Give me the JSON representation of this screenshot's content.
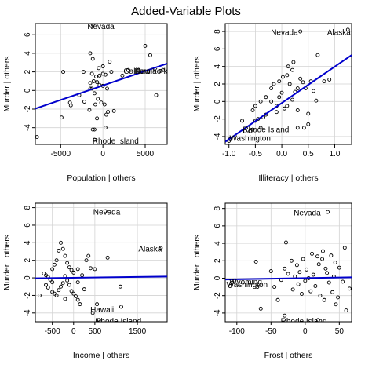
{
  "title": "Added-Variable Plots",
  "chart_data": [
    {
      "type": "scatter",
      "xlabel": "Population | others",
      "ylabel": "Murder | others",
      "xlim": [
        -8000,
        7600
      ],
      "ylim": [
        -5.8,
        7.2
      ],
      "xticks": [
        -5000,
        0,
        5000
      ],
      "xtick_labels": [
        "-5000",
        "0",
        "5000"
      ],
      "yticks": [
        -4,
        -2,
        0,
        2,
        4,
        6
      ],
      "yticklabels": [
        "-4",
        "-2",
        "0",
        "2",
        "4",
        "6"
      ],
      "line": {
        "x": [
          -8000,
          7600
        ],
        "y": [
          -1.95,
          2.9
        ]
      },
      "labels": [
        {
          "text": "Nevada",
          "x": -250,
          "y": 6.9
        },
        {
          "text": "California",
          "x": 4400,
          "y": 2.1
        },
        {
          "text": "New York",
          "x": 5700,
          "y": 2.1
        },
        {
          "text": "Rhode Island",
          "x": 1500,
          "y": -5.4
        }
      ],
      "points": [
        [
          -1200,
          7.1
        ],
        [
          -2300,
          2.0
        ],
        [
          -1300,
          1.8
        ],
        [
          -800,
          1.5
        ],
        [
          -400,
          1.6
        ],
        [
          0,
          1.8
        ],
        [
          300,
          1.7
        ],
        [
          -1500,
          0.8
        ],
        [
          -1100,
          1.0
        ],
        [
          -700,
          0.9
        ],
        [
          -400,
          0.6
        ],
        [
          0,
          0.5
        ],
        [
          500,
          0.2
        ],
        [
          -2800,
          -0.5
        ],
        [
          -2200,
          -1.2
        ],
        [
          -1500,
          0.2
        ],
        [
          -1000,
          -0.3
        ],
        [
          -600,
          -0.9
        ],
        [
          -200,
          -1.3
        ],
        [
          200,
          -1.5
        ],
        [
          600,
          -2.3
        ],
        [
          1300,
          -2.2
        ],
        [
          -1600,
          -2.1
        ],
        [
          -700,
          -3.0
        ],
        [
          -1000,
          -4.2
        ],
        [
          -1200,
          -4.2
        ],
        [
          -4700,
          2.0
        ],
        [
          -3900,
          -1.3
        ],
        [
          -3800,
          -1.6
        ],
        [
          -4900,
          -2.9
        ],
        [
          -7800,
          -5.0
        ],
        [
          -1200,
          3.4
        ],
        [
          -1500,
          4.0
        ],
        [
          -500,
          2.4
        ],
        [
          0,
          2.6
        ],
        [
          1000,
          2.0
        ],
        [
          5000,
          4.8
        ],
        [
          5600,
          3.8
        ],
        [
          4200,
          2.2
        ],
        [
          3000,
          2.2
        ],
        [
          2300,
          1.6
        ],
        [
          6300,
          -0.5
        ],
        [
          6800,
          2.1
        ],
        [
          7100,
          2.2
        ],
        [
          300,
          -4.0
        ],
        [
          -1000,
          -5.3
        ],
        [
          -900,
          -1.5
        ],
        [
          -1300,
          0.2
        ],
        [
          400,
          -2.6
        ],
        [
          800,
          3.1
        ]
      ]
    },
    {
      "type": "scatter",
      "xlabel": "Illiteracy | others",
      "ylabel": "Murder | others",
      "xlim": [
        -1.07,
        1.32
      ],
      "ylim": [
        -4.9,
        8.9
      ],
      "xticks": [
        -1.0,
        -0.5,
        0.0,
        0.5,
        1.0
      ],
      "xtick_labels": [
        "-1.0",
        "-0.5",
        "0.0",
        "0.5",
        "1.0"
      ],
      "yticks": [
        -4,
        -2,
        0,
        2,
        4,
        6,
        8
      ],
      "yticklabels": [
        "-4",
        "-2",
        "0",
        "2",
        "4",
        "6",
        "8"
      ],
      "line": {
        "x": [
          -1.07,
          1.32
        ],
        "y": [
          -4.6,
          5.3
        ]
      },
      "labels": [
        {
          "text": "Nevada",
          "x": 0.05,
          "y": 7.9
        },
        {
          "text": "Alaska",
          "x": 1.08,
          "y": 7.9
        },
        {
          "text": "Rhode Island",
          "x": -0.3,
          "y": -3.2
        },
        {
          "text": "Washington",
          "x": -0.6,
          "y": -4.2
        }
      ],
      "points": [
        [
          -1.0,
          -4.5
        ],
        [
          -0.98,
          -4.3
        ],
        [
          -0.7,
          -3.4
        ],
        [
          -0.6,
          -3.4
        ],
        [
          -0.55,
          -3.2
        ],
        [
          -0.4,
          -3.0
        ],
        [
          -0.5,
          -2.2
        ],
        [
          -0.45,
          -2.0
        ],
        [
          -0.35,
          -1.8
        ],
        [
          -0.3,
          -1.5
        ],
        [
          -0.55,
          -1.0
        ],
        [
          -0.5,
          -0.5
        ],
        [
          -0.4,
          0.0
        ],
        [
          -0.3,
          0.5
        ],
        [
          -0.2,
          0.0
        ],
        [
          -0.1,
          -0.5
        ],
        [
          -0.05,
          0.5
        ],
        [
          0.0,
          1.0
        ],
        [
          0.05,
          -0.8
        ],
        [
          0.1,
          -0.5
        ],
        [
          0.2,
          0.2
        ],
        [
          0.25,
          1.1
        ],
        [
          0.3,
          -1.0
        ],
        [
          -0.2,
          1.5
        ],
        [
          -0.15,
          2.0
        ],
        [
          -0.05,
          2.3
        ],
        [
          0.02,
          2.8
        ],
        [
          0.1,
          3.0
        ],
        [
          0.15,
          2.0
        ],
        [
          0.2,
          3.6
        ],
        [
          0.3,
          1.5
        ],
        [
          0.35,
          2.6
        ],
        [
          0.4,
          2.2
        ],
        [
          0.45,
          1.5
        ],
        [
          0.55,
          2.3
        ],
        [
          0.6,
          1.2
        ],
        [
          0.8,
          2.3
        ],
        [
          0.9,
          2.5
        ],
        [
          0.5,
          -1.4
        ],
        [
          0.3,
          -3.0
        ],
        [
          0.42,
          -3.0
        ],
        [
          0.5,
          -2.6
        ],
        [
          -0.75,
          -2.2
        ],
        [
          0.35,
          8.0
        ],
        [
          1.25,
          8.2
        ],
        [
          0.68,
          5.3
        ],
        [
          0.22,
          4.5
        ],
        [
          0.12,
          4.0
        ],
        [
          -0.1,
          -1.2
        ],
        [
          0.65,
          0.1
        ]
      ]
    },
    {
      "type": "scatter",
      "xlabel": "Income | others",
      "ylabel": "Murder | others",
      "xlim": [
        -900,
        2200
      ],
      "ylim": [
        -5.0,
        8.5
      ],
      "xticks": [
        -500,
        0,
        500,
        1500
      ],
      "xtick_labels": [
        "-500",
        "0",
        "500",
        "1500"
      ],
      "yticks": [
        -4,
        -2,
        0,
        2,
        4,
        6,
        8
      ],
      "yticklabels": [
        "-4",
        "-2",
        "0",
        "2",
        "4",
        "6",
        "8"
      ],
      "line": {
        "x": [
          -900,
          2200
        ],
        "y": [
          -0.05,
          0.15
        ]
      },
      "labels": [
        {
          "text": "Nevada",
          "x": 780,
          "y": 7.5
        },
        {
          "text": "Alaska",
          "x": 1800,
          "y": 3.3
        },
        {
          "text": "Hawaii",
          "x": 670,
          "y": -3.6
        },
        {
          "text": "Rhode Island",
          "x": 1050,
          "y": -4.9
        }
      ],
      "points": [
        [
          -800,
          -2.0
        ],
        [
          -700,
          0.5
        ],
        [
          -650,
          0.3
        ],
        [
          -600,
          0.1
        ],
        [
          -550,
          -0.2
        ],
        [
          -500,
          -0.5
        ],
        [
          -600,
          -1.1
        ],
        [
          -500,
          -1.6
        ],
        [
          -450,
          -1.8
        ],
        [
          -400,
          -2.0
        ],
        [
          -350,
          -1.4
        ],
        [
          -300,
          -1.0
        ],
        [
          -250,
          -0.6
        ],
        [
          -200,
          0.2
        ],
        [
          -150,
          -0.3
        ],
        [
          -100,
          -0.8
        ],
        [
          -50,
          -1.5
        ],
        [
          0,
          -1.8
        ],
        [
          50,
          -2.1
        ],
        [
          100,
          -2.5
        ],
        [
          150,
          -3.0
        ],
        [
          -500,
          1.0
        ],
        [
          -450,
          1.5
        ],
        [
          -400,
          2.0
        ],
        [
          -350,
          3.1
        ],
        [
          -300,
          4.0
        ],
        [
          -250,
          3.3
        ],
        [
          -200,
          2.5
        ],
        [
          -150,
          1.7
        ],
        [
          -100,
          1.2
        ],
        [
          -50,
          0.9
        ],
        [
          0,
          0.6
        ],
        [
          100,
          1.0
        ],
        [
          200,
          0.3
        ],
        [
          300,
          2.0
        ],
        [
          350,
          2.5
        ],
        [
          400,
          1.1
        ],
        [
          500,
          1.0
        ],
        [
          800,
          2.3
        ],
        [
          1100,
          -1.0
        ],
        [
          1120,
          -3.3
        ],
        [
          750,
          7.6
        ],
        [
          2050,
          3.4
        ],
        [
          550,
          -3.0
        ],
        [
          600,
          -4.8
        ],
        [
          450,
          -4.0
        ],
        [
          -200,
          -2.4
        ],
        [
          -650,
          -0.8
        ],
        [
          100,
          -0.5
        ],
        [
          250,
          -1.3
        ]
      ]
    },
    {
      "type": "scatter",
      "xlabel": "Frost | others",
      "ylabel": "Murder | others",
      "xlim": [
        -117,
        68
      ],
      "ylim": [
        -5.0,
        8.6
      ],
      "xticks": [
        -100,
        -50,
        0,
        50
      ],
      "xtick_labels": [
        "-100",
        "-50",
        "0",
        "50"
      ],
      "yticks": [
        -4,
        -2,
        0,
        2,
        4,
        6,
        8
      ],
      "yticklabels": [
        "-4",
        "-2",
        "0",
        "2",
        "4",
        "6",
        "8"
      ],
      "line": {
        "x": [
          -117,
          68
        ],
        "y": [
          -0.15,
          0.1
        ]
      },
      "labels": [
        {
          "text": "Nevada",
          "x": 3,
          "y": 7.5
        },
        {
          "text": "Wyoming",
          "x": -87,
          "y": -0.4
        },
        {
          "text": "Washington",
          "x": -85,
          "y": -0.7
        },
        {
          "text": "Rhode Island",
          "x": -2,
          "y": -4.9
        }
      ],
      "points": [
        [
          -110,
          -0.9
        ],
        [
          -107,
          -0.5
        ],
        [
          -72,
          1.9
        ],
        [
          -70,
          -1.0
        ],
        [
          -65,
          -3.5
        ],
        [
          -50,
          0.8
        ],
        [
          -45,
          -1.0
        ],
        [
          -40,
          -2.5
        ],
        [
          -35,
          -0.2
        ],
        [
          -30,
          1.1
        ],
        [
          -28,
          4.1
        ],
        [
          -25,
          0.5
        ],
        [
          -20,
          2.0
        ],
        [
          -18,
          -1.3
        ],
        [
          -15,
          0.2
        ],
        [
          -12,
          1.5
        ],
        [
          -10,
          -0.7
        ],
        [
          -8,
          0.7
        ],
        [
          -5,
          -1.8
        ],
        [
          -3,
          2.2
        ],
        [
          0,
          -0.3
        ],
        [
          2,
          1.0
        ],
        [
          5,
          0.0
        ],
        [
          8,
          -1.5
        ],
        [
          10,
          2.8
        ],
        [
          12,
          0.4
        ],
        [
          15,
          -0.9
        ],
        [
          18,
          2.5
        ],
        [
          20,
          1.6
        ],
        [
          22,
          -2.0
        ],
        [
          25,
          2.2
        ],
        [
          26,
          3.1
        ],
        [
          28,
          -2.5
        ],
        [
          30,
          1.1
        ],
        [
          32,
          0.6
        ],
        [
          35,
          -0.5
        ],
        [
          38,
          2.6
        ],
        [
          40,
          -1.6
        ],
        [
          42,
          0.2
        ],
        [
          45,
          -3.0
        ],
        [
          48,
          -2.2
        ],
        [
          50,
          1.2
        ],
        [
          55,
          -0.4
        ],
        [
          58,
          3.5
        ],
        [
          60,
          -3.7
        ],
        [
          65,
          -1.2
        ],
        [
          -30,
          -4.3
        ],
        [
          33,
          7.6
        ],
        [
          19,
          -4.8
        ],
        [
          44,
          1.8
        ]
      ]
    }
  ],
  "colors": {
    "line": "#0000cc",
    "points": "#000000",
    "grid": "#d3d3d3",
    "frame": "#000000"
  }
}
